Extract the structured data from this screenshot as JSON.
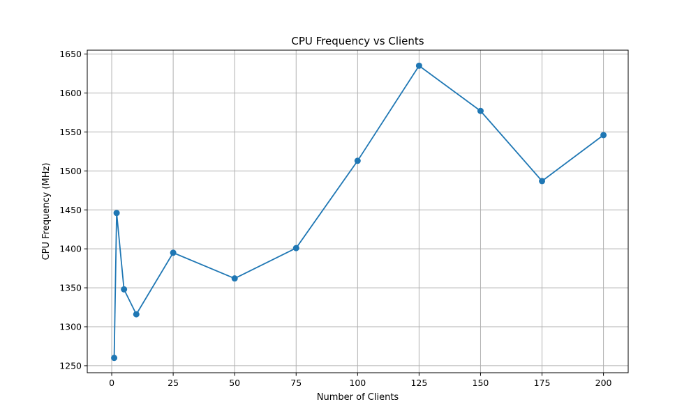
{
  "chart_data": {
    "type": "line",
    "title": "CPU Frequency vs Clients",
    "xlabel": "Number of Clients",
    "ylabel": "CPU Frequency (MHz)",
    "xlim": [
      -9.95,
      210.05
    ],
    "ylim": [
      1241,
      1655
    ],
    "xticks": [
      0,
      25,
      50,
      75,
      100,
      125,
      150,
      175,
      200
    ],
    "yticks": [
      1250,
      1300,
      1350,
      1400,
      1450,
      1500,
      1550,
      1600,
      1650
    ],
    "grid": true,
    "legend": "none",
    "series": [
      {
        "color": "#1f77b4",
        "marker": "circle",
        "points": [
          {
            "x": 1,
            "y": 1260
          },
          {
            "x": 2,
            "y": 1446
          },
          {
            "x": 5,
            "y": 1348
          },
          {
            "x": 10,
            "y": 1316
          },
          {
            "x": 25,
            "y": 1395
          },
          {
            "x": 50,
            "y": 1362
          },
          {
            "x": 75,
            "y": 1401
          },
          {
            "x": 100,
            "y": 1513
          },
          {
            "x": 125,
            "y": 1635
          },
          {
            "x": 150,
            "y": 1577
          },
          {
            "x": 175,
            "y": 1487
          },
          {
            "x": 200,
            "y": 1546
          }
        ]
      }
    ]
  }
}
